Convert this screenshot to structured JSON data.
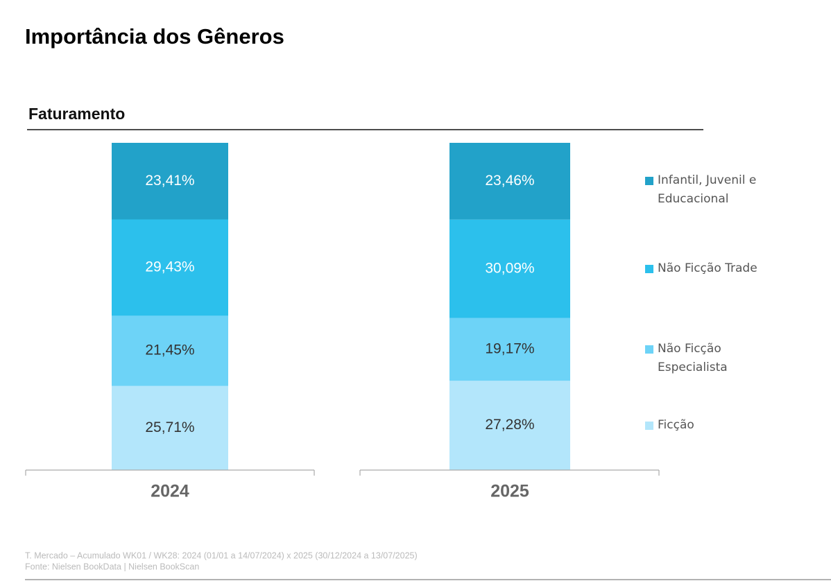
{
  "chart_data": {
    "type": "stacked_bar",
    "title": "Importância dos Gêneros",
    "subtitle": "Faturamento",
    "categories": [
      "2024",
      "2025"
    ],
    "series": [
      {
        "name": "Ficção",
        "color": "#b3e6fb",
        "values": [
          25.71,
          27.28
        ],
        "value_labels": [
          "25,71%",
          "27,28%"
        ]
      },
      {
        "name": "Não Ficção Especialista",
        "color": "#6dd3f7",
        "values": [
          21.45,
          19.17
        ],
        "value_labels": [
          "21,45%",
          "19,17%"
        ]
      },
      {
        "name": "Não Ficção Trade",
        "color": "#2cc0ec",
        "values": [
          29.43,
          30.09
        ],
        "value_labels": [
          "29,43%",
          "30,09%"
        ]
      },
      {
        "name": "Infantil, Juvenil e Educacional",
        "color": "#22a2c9",
        "values": [
          23.41,
          23.46
        ],
        "value_labels": [
          "23,41%",
          "23,46%"
        ]
      }
    ],
    "ylim": [
      0,
      100
    ],
    "footnotes": [
      "T. Mercado – Acumulado WK01 / WK28: 2024 (01/01 a 14/07/2024) x 2025 (30/12/2024 a 13/07/2025)",
      "Fonte: Nielsen BookData | Nielsen BookScan"
    ]
  }
}
